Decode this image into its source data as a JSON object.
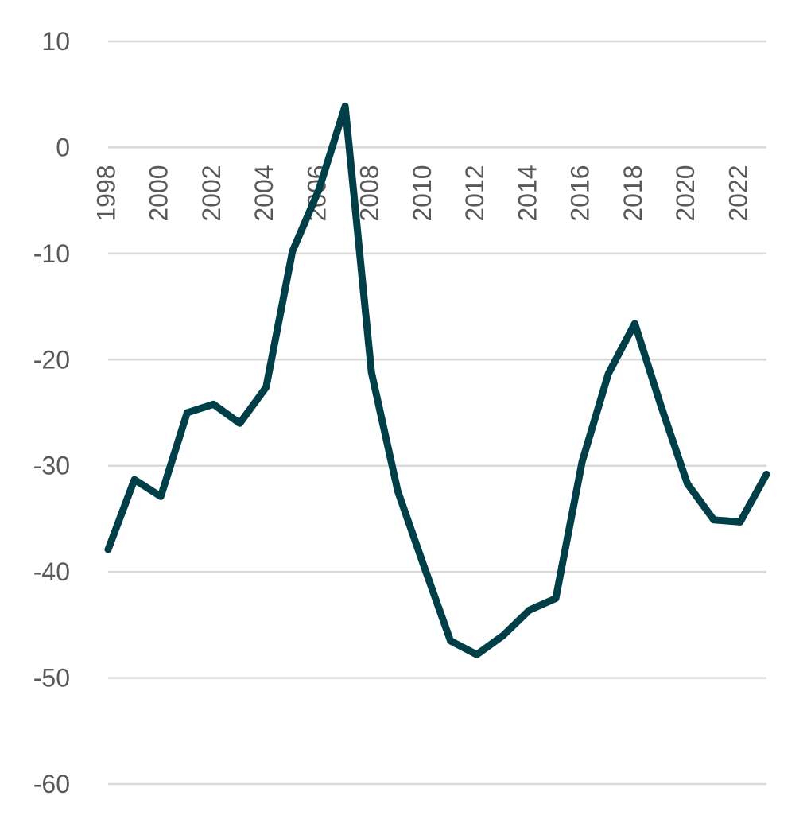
{
  "chart_data": {
    "type": "line",
    "title": "",
    "xlabel": "",
    "ylabel": "",
    "ylim": [
      -60,
      10
    ],
    "y_ticks": [
      "10",
      "0",
      "-10",
      "-20",
      "-30",
      "-40",
      "-50",
      "-60"
    ],
    "x": [
      1998,
      1999,
      2000,
      2001,
      2002,
      2003,
      2004,
      2005,
      2006,
      2007,
      2008,
      2009,
      2010,
      2011,
      2012,
      2013,
      2014,
      2015,
      2016,
      2017,
      2018,
      2019,
      2020,
      2021,
      2022,
      2023
    ],
    "x_tick_labels": [
      "1998",
      "2000",
      "2002",
      "2004",
      "2006",
      "2008",
      "2010",
      "2012",
      "2014",
      "2016",
      "2018",
      "2020",
      "2022"
    ],
    "grid": true,
    "legend": "none",
    "series": [
      {
        "color": "#003f47",
        "values": [
          -37.9,
          -31.3,
          -32.9,
          -25.0,
          -24.2,
          -26.0,
          -22.6,
          -9.8,
          -4.0,
          3.9,
          -21.2,
          -32.4,
          -39.5,
          -46.5,
          -47.8,
          -46.0,
          -43.6,
          -42.5,
          -29.6,
          -21.3,
          -16.6,
          -24.4,
          -31.7,
          -35.1,
          -35.3,
          -30.8
        ]
      }
    ]
  }
}
